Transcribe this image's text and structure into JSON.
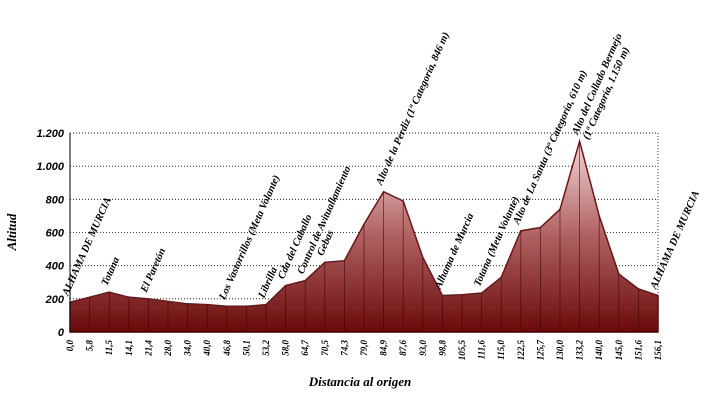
{
  "chart_data": {
    "type": "area",
    "x_label": "Distancia al origen",
    "y_label": "Altitud",
    "categories": [
      "0,0",
      "5,8",
      "11,5",
      "14,1",
      "21,4",
      "28,0",
      "34,0",
      "40,0",
      "46,8",
      "50,1",
      "53,2",
      "58,0",
      "64,7",
      "70,5",
      "74,3",
      "79,0",
      "84,9",
      "87,6",
      "93,0",
      "98,8",
      "105,5",
      "111,6",
      "115,0",
      "122,5",
      "125,7",
      "130,0",
      "133,2",
      "140,0",
      "145,0",
      "151,6",
      "156,1"
    ],
    "values": [
      180,
      210,
      240,
      210,
      200,
      185,
      170,
      165,
      155,
      155,
      165,
      280,
      310,
      420,
      430,
      650,
      846,
      790,
      450,
      220,
      225,
      235,
      330,
      610,
      630,
      740,
      1150,
      700,
      350,
      260,
      220
    ],
    "annotations": [
      [
        "ALHAMA DE MURCIA"
      ],
      null,
      [
        "Totana"
      ],
      null,
      [
        "El Paretón"
      ],
      null,
      null,
      null,
      [
        "Los Vastorrillos (Meta Volante)"
      ],
      null,
      [
        "Librilla"
      ],
      [
        "Cda del Caballo"
      ],
      [
        "Control de Avituallamiento"
      ],
      [
        "Gebas"
      ],
      null,
      null,
      [
        "Alto de la Perdiz (1ª Categoría, 846 m)"
      ],
      null,
      null,
      [
        "Alhama de Murcia"
      ],
      null,
      [
        "Totana (Meta Volante)"
      ],
      null,
      [
        "Alto de La Santa (3ª Categoría, 610 m)"
      ],
      null,
      null,
      [
        "Alto del Collado Bermejo",
        "(1ª Categoría, 1.150 m)"
      ],
      null,
      null,
      null,
      [
        "ALHAMA DE MURCIA"
      ]
    ],
    "color": "#7a1010",
    "ylim": [
      0,
      1200
    ],
    "yticks": [
      0,
      200,
      400,
      600,
      800,
      {
        "value": 1000,
        "label": "1.000"
      },
      {
        "value": 1200,
        "label": "1.200"
      }
    ],
    "grid": true
  }
}
